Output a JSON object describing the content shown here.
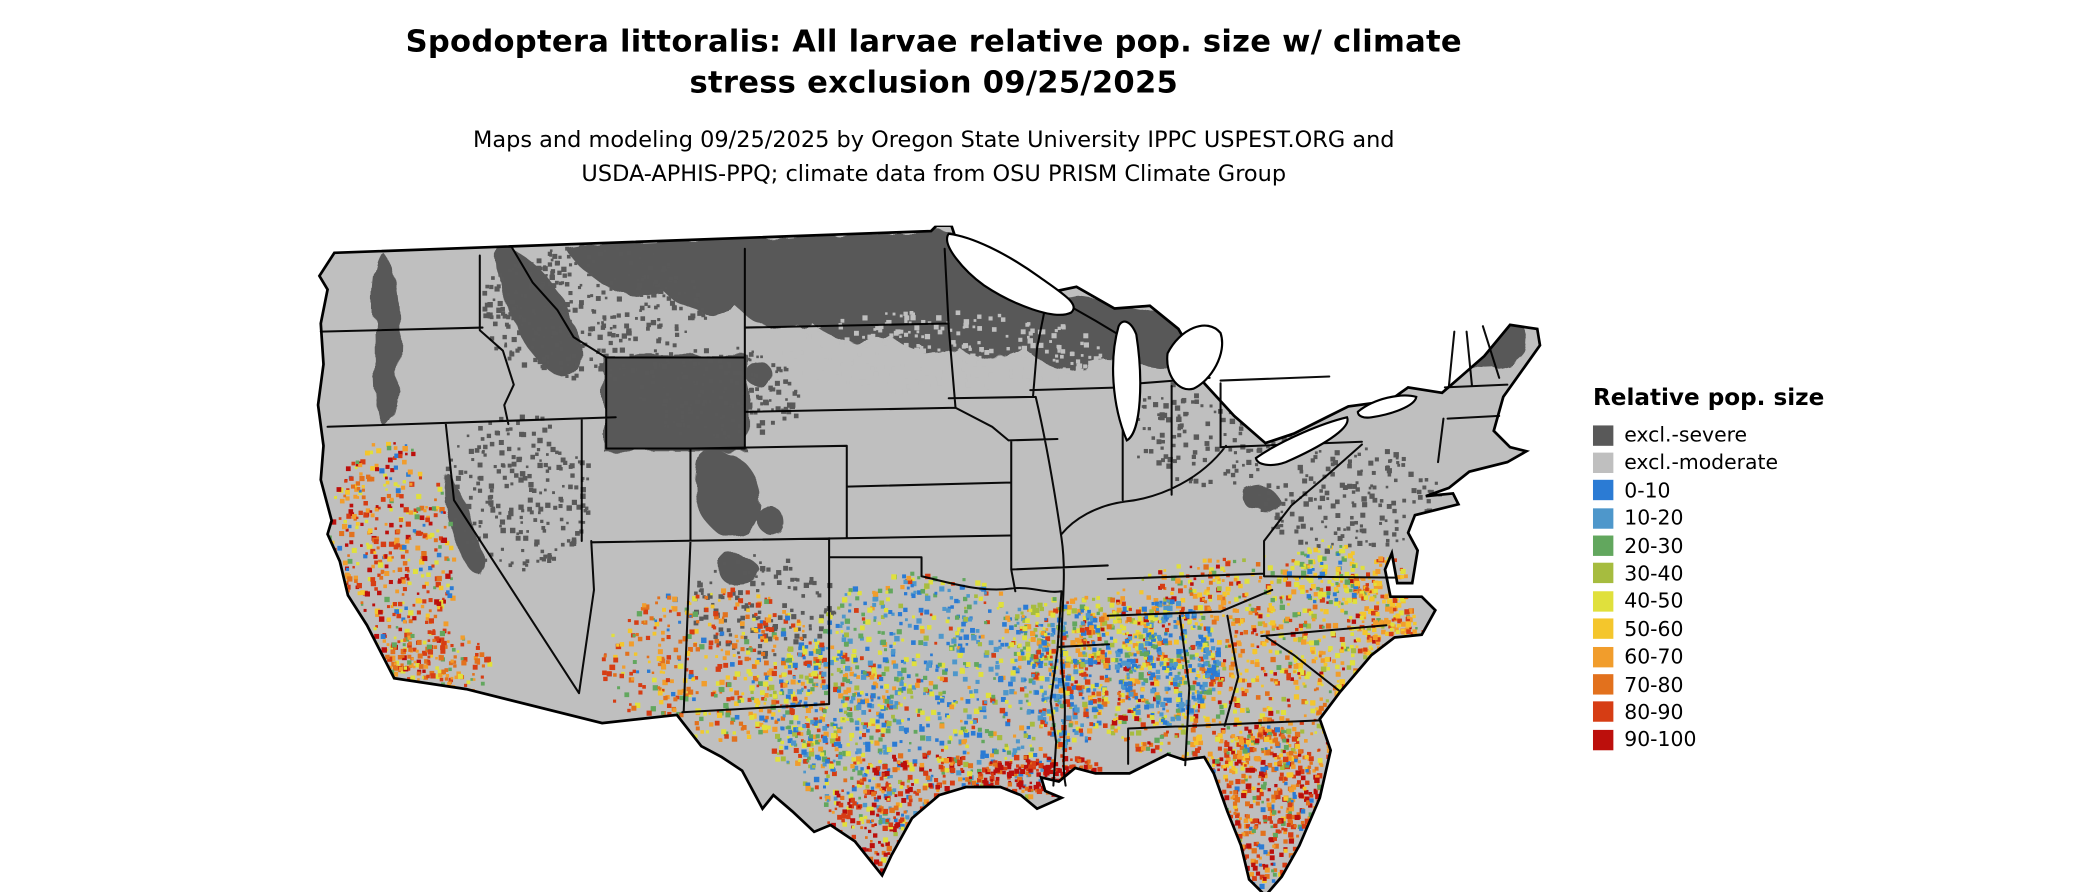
{
  "title": {
    "line1": "Spodoptera littoralis: All larvae relative pop. size w/ climate",
    "line2": "stress exclusion 09/25/2025"
  },
  "subtitle": {
    "line1": "Maps and modeling 09/25/2025 by Oregon State University IPPC USPEST.ORG and",
    "line2": "USDA-APHIS-PPQ; climate data from OSU PRISM Climate Group"
  },
  "legend": {
    "title": "Relative pop. size",
    "items": [
      {
        "label": "excl.-severe",
        "color": "#595959"
      },
      {
        "label": "excl.-moderate",
        "color": "#bfbfbf"
      },
      {
        "label": "0-10",
        "color": "#2b7bd4"
      },
      {
        "label": "10-20",
        "color": "#4e97cb"
      },
      {
        "label": "20-30",
        "color": "#62a75e"
      },
      {
        "label": "30-40",
        "color": "#a6bc3f"
      },
      {
        "label": "40-50",
        "color": "#e0e03c"
      },
      {
        "label": "50-60",
        "color": "#f4c62c"
      },
      {
        "label": "60-70",
        "color": "#f19d2c"
      },
      {
        "label": "70-80",
        "color": "#e2711d"
      },
      {
        "label": "80-90",
        "color": "#d63d14"
      },
      {
        "label": "90-100",
        "color": "#bc0f0c"
      }
    ]
  },
  "map": {
    "excluded_severe_color": "#595959",
    "excluded_moderate_color": "#bfbfbf",
    "border_color": "#000000",
    "water_color": "#ffffff"
  }
}
